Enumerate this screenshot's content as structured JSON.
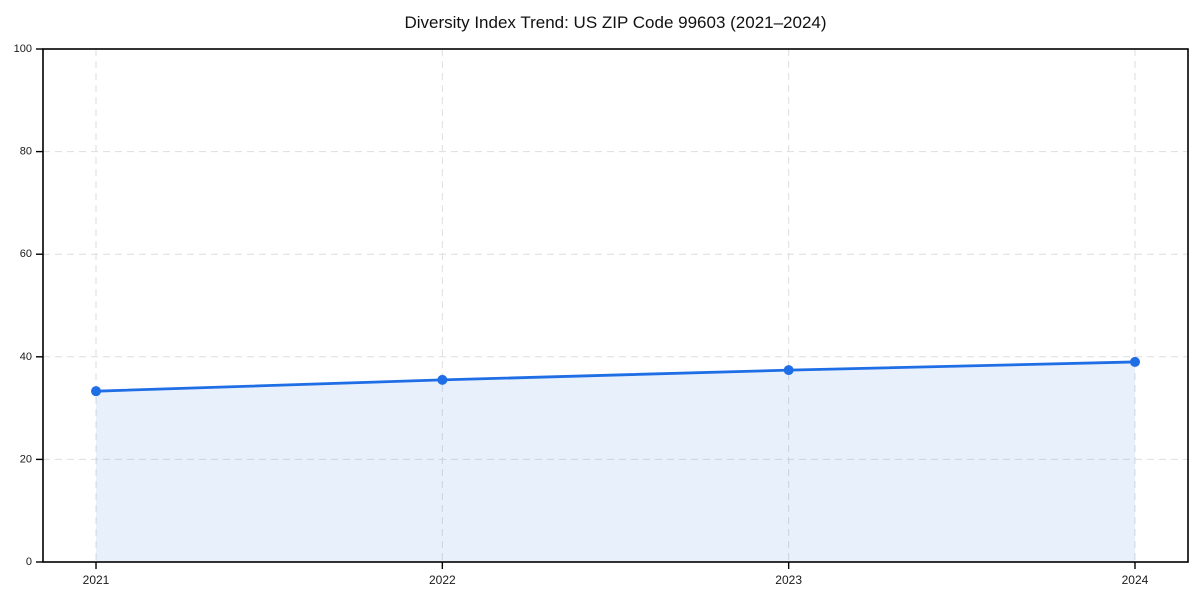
{
  "page": {
    "background": "#ffffff"
  },
  "chart_data": {
    "type": "area",
    "title": "Diversity Index Trend: US ZIP Code 99603 (2021–2024)",
    "x": [
      "2021",
      "2022",
      "2023",
      "2024"
    ],
    "series": [
      {
        "name": "Diversity Index",
        "values": [
          33.3,
          35.5,
          37.4,
          39.0
        ]
      }
    ],
    "xlabel": "",
    "ylabel": "",
    "ylim": [
      0,
      100
    ],
    "yticks": [
      0,
      20,
      40,
      60,
      80,
      100
    ],
    "grid": "dashed",
    "legend_position": "none",
    "line_color": "#1f6ee5",
    "fill_color": "#1f6ee5",
    "fill_opacity": 0.1,
    "marker": "circle",
    "axis_color": "#000000",
    "grid_color": "#dedede",
    "tick_label_color": "#1a1a1a",
    "title_color": "#111111"
  }
}
